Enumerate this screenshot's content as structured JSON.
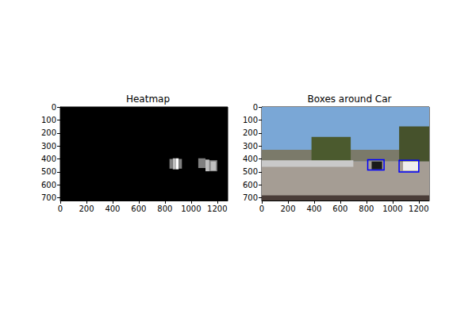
{
  "chart_data": [
    {
      "type": "heatmap",
      "title": "Heatmap",
      "xlim": [
        0,
        1280
      ],
      "xticks": [
        0,
        200,
        400,
        600,
        800,
        1000,
        1200
      ],
      "ylim": [
        720,
        0
      ],
      "yticks": [
        0,
        100,
        200,
        300,
        400,
        500,
        600,
        700
      ],
      "clim": [
        0,
        4
      ],
      "cells": [
        {
          "x0": 835,
          "y0": 400,
          "x1": 860,
          "y1": 475,
          "value": 2
        },
        {
          "x0": 860,
          "y0": 395,
          "x1": 885,
          "y1": 480,
          "value": 3
        },
        {
          "x0": 885,
          "y0": 395,
          "x1": 905,
          "y1": 480,
          "value": 4
        },
        {
          "x0": 905,
          "y0": 400,
          "x1": 930,
          "y1": 475,
          "value": 2
        },
        {
          "x0": 1055,
          "y0": 395,
          "x1": 1110,
          "y1": 470,
          "value": 2
        },
        {
          "x0": 1110,
          "y0": 405,
          "x1": 1140,
          "y1": 495,
          "value": 3
        },
        {
          "x0": 1140,
          "y0": 410,
          "x1": 1200,
          "y1": 495,
          "value": 2
        },
        {
          "x0": 1150,
          "y0": 420,
          "x1": 1190,
          "y1": 490,
          "value": 3
        }
      ]
    },
    {
      "type": "image",
      "title": "Boxes around Car",
      "xlim": [
        0,
        1280
      ],
      "xticks": [
        0,
        200,
        400,
        600,
        800,
        1000,
        1200
      ],
      "ylim": [
        720,
        0
      ],
      "yticks": [
        0,
        100,
        200,
        300,
        400,
        500,
        600,
        700
      ],
      "regions": [
        {
          "x0": 0,
          "y0": 0,
          "x1": 1280,
          "y1": 420,
          "color": "#7aa7d6"
        },
        {
          "x0": 0,
          "y0": 330,
          "x1": 1280,
          "y1": 420,
          "color": "#7b7a6a"
        },
        {
          "x0": 380,
          "y0": 230,
          "x1": 680,
          "y1": 420,
          "color": "#4b5a2e"
        },
        {
          "x0": 1050,
          "y0": 150,
          "x1": 1280,
          "y1": 420,
          "color": "#46522c"
        },
        {
          "x0": 0,
          "y0": 420,
          "x1": 1280,
          "y1": 720,
          "color": "#a59d94"
        },
        {
          "x0": 0,
          "y0": 410,
          "x1": 700,
          "y1": 460,
          "color": "#c9c9c9"
        },
        {
          "x0": 0,
          "y0": 680,
          "x1": 1280,
          "y1": 720,
          "color": "#4a3d38"
        },
        {
          "x0": 840,
          "y0": 420,
          "x1": 920,
          "y1": 480,
          "color": "#1a1a1a"
        },
        {
          "x0": 1080,
          "y0": 420,
          "x1": 1200,
          "y1": 490,
          "color": "#eeeeee"
        }
      ],
      "boxes": [
        {
          "x0": 810,
          "y0": 405,
          "x1": 935,
          "y1": 485
        },
        {
          "x0": 1050,
          "y0": 410,
          "x1": 1200,
          "y1": 500
        }
      ],
      "color": "#0000ff"
    }
  ]
}
